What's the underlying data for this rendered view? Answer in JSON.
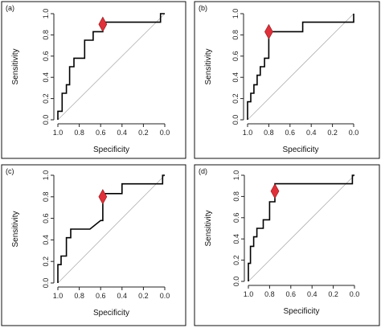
{
  "chart_data": [
    {
      "type": "line",
      "panel": "(a)",
      "xlabel": "Specificity",
      "ylabel": "Sensitivity",
      "xlim": [
        1.0,
        0.0
      ],
      "ylim": [
        0.0,
        1.0
      ],
      "xticks": [
        "1.0",
        "0.8",
        "0.6",
        "0.4",
        "0.2",
        "0.0"
      ],
      "yticks": [
        "0.0",
        "0.2",
        "0.4",
        "0.6",
        "0.8",
        "1.0"
      ],
      "x_reversed": true,
      "diagonal_reference": true,
      "points": [
        [
          1.0,
          0.0
        ],
        [
          1.0,
          0.08
        ],
        [
          0.96,
          0.08
        ],
        [
          0.96,
          0.25
        ],
        [
          0.92,
          0.25
        ],
        [
          0.92,
          0.33
        ],
        [
          0.89,
          0.33
        ],
        [
          0.89,
          0.5
        ],
        [
          0.85,
          0.5
        ],
        [
          0.85,
          0.58
        ],
        [
          0.75,
          0.58
        ],
        [
          0.75,
          0.75
        ],
        [
          0.67,
          0.75
        ],
        [
          0.67,
          0.83
        ],
        [
          0.58,
          0.83
        ],
        [
          0.58,
          0.92
        ],
        [
          0.04,
          0.92
        ],
        [
          0.04,
          1.0
        ],
        [
          0.0,
          1.0
        ]
      ],
      "optimal_point": [
        0.58,
        0.9
      ]
    },
    {
      "type": "line",
      "panel": "(b)",
      "xlabel": "Specificity",
      "ylabel": "Sensitivity",
      "xlim": [
        1.0,
        0.0
      ],
      "ylim": [
        0.0,
        1.0
      ],
      "xticks": [
        "1.0",
        "0.8",
        "0.6",
        "0.4",
        "0.2",
        "0.0"
      ],
      "yticks": [
        "0.0",
        "0.2",
        "0.4",
        "0.6",
        "0.8",
        "1.0"
      ],
      "x_reversed": true,
      "diagonal_reference": true,
      "points": [
        [
          1.0,
          0.0
        ],
        [
          1.0,
          0.17
        ],
        [
          0.97,
          0.17
        ],
        [
          0.97,
          0.25
        ],
        [
          0.94,
          0.25
        ],
        [
          0.94,
          0.33
        ],
        [
          0.91,
          0.33
        ],
        [
          0.91,
          0.42
        ],
        [
          0.88,
          0.42
        ],
        [
          0.88,
          0.5
        ],
        [
          0.84,
          0.5
        ],
        [
          0.84,
          0.58
        ],
        [
          0.8,
          0.58
        ],
        [
          0.8,
          0.83
        ],
        [
          0.48,
          0.83
        ],
        [
          0.48,
          0.92
        ],
        [
          0.0,
          0.92
        ],
        [
          0.0,
          1.0
        ]
      ],
      "optimal_point": [
        0.8,
        0.83
      ]
    },
    {
      "type": "line",
      "panel": "(c)",
      "xlabel": "Specificity",
      "ylabel": "Sensitivity",
      "xlim": [
        1.0,
        0.0
      ],
      "ylim": [
        0.0,
        1.0
      ],
      "xticks": [
        "1.0",
        "0.8",
        "0.6",
        "0.4",
        "0.2",
        "0.0"
      ],
      "yticks": [
        "0.0",
        "0.2",
        "0.4",
        "0.6",
        "0.8",
        "1.0"
      ],
      "x_reversed": true,
      "diagonal_reference": true,
      "points": [
        [
          1.0,
          0.0
        ],
        [
          1.0,
          0.17
        ],
        [
          0.97,
          0.17
        ],
        [
          0.97,
          0.25
        ],
        [
          0.92,
          0.25
        ],
        [
          0.92,
          0.42
        ],
        [
          0.88,
          0.42
        ],
        [
          0.88,
          0.5
        ],
        [
          0.7,
          0.5
        ],
        [
          0.6,
          0.58
        ],
        [
          0.58,
          0.58
        ],
        [
          0.58,
          0.83
        ],
        [
          0.52,
          0.83
        ],
        [
          0.4,
          0.83
        ],
        [
          0.4,
          0.92
        ],
        [
          0.02,
          0.92
        ],
        [
          0.02,
          1.0
        ],
        [
          0.0,
          1.0
        ]
      ],
      "optimal_point": [
        0.58,
        0.8
      ]
    },
    {
      "type": "line",
      "panel": "(d)",
      "xlabel": "Specificity",
      "ylabel": "Sensitivity",
      "xlim": [
        1.0,
        0.0
      ],
      "ylim": [
        0.0,
        1.0
      ],
      "xticks": [
        "1.0",
        "0.8",
        "0.6",
        "0.4",
        "0.2",
        "0.0"
      ],
      "yticks": [
        "0.0",
        "0.2",
        "0.4",
        "0.6",
        "0.8",
        "1.0"
      ],
      "x_reversed": true,
      "diagonal_reference": true,
      "points": [
        [
          1.0,
          0.0
        ],
        [
          1.0,
          0.17
        ],
        [
          0.98,
          0.17
        ],
        [
          0.98,
          0.33
        ],
        [
          0.95,
          0.33
        ],
        [
          0.95,
          0.42
        ],
        [
          0.92,
          0.42
        ],
        [
          0.92,
          0.5
        ],
        [
          0.86,
          0.5
        ],
        [
          0.86,
          0.58
        ],
        [
          0.8,
          0.58
        ],
        [
          0.8,
          0.75
        ],
        [
          0.75,
          0.75
        ],
        [
          0.75,
          0.92
        ],
        [
          0.02,
          0.92
        ],
        [
          0.02,
          1.0
        ],
        [
          0.0,
          1.0
        ]
      ],
      "optimal_point": [
        0.75,
        0.85
      ]
    }
  ]
}
